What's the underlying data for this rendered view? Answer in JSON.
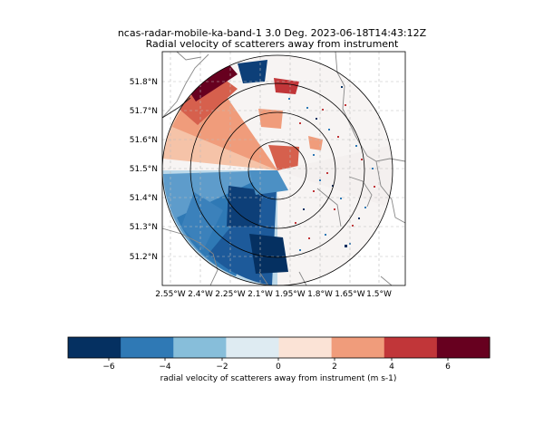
{
  "title": "ncas-radar-mobile-ka-band-1 3.0 Deg. 2023-06-18T14:43:12Z",
  "subtitle": "Radial velocity of scatterers away from instrument",
  "map": {
    "lat_ticks": [
      "51.8°N",
      "51.7°N",
      "51.6°N",
      "51.5°N",
      "51.4°N",
      "51.3°N",
      "51.2°N"
    ],
    "lon_ticks": [
      "2.55°W",
      "2.4°W",
      "2.25°W",
      "2.1°W",
      "1.95°W",
      "1.8°W",
      "1.65°W",
      "1.5°W"
    ],
    "range_rings": 4,
    "gridlines": "dashed"
  },
  "colorbar": {
    "label": "radial velocity of scatterers away from instrument (m s-1)",
    "ticks": [
      "−6",
      "−4",
      "−2",
      "0",
      "2",
      "4",
      "6"
    ],
    "range": [
      -7.5,
      7.5
    ],
    "colors": [
      "#053061",
      "#2f79b5",
      "#87beda",
      "#deebf2",
      "#fbe3d6",
      "#f09c7b",
      "#c13639",
      "#67001f"
    ]
  }
}
